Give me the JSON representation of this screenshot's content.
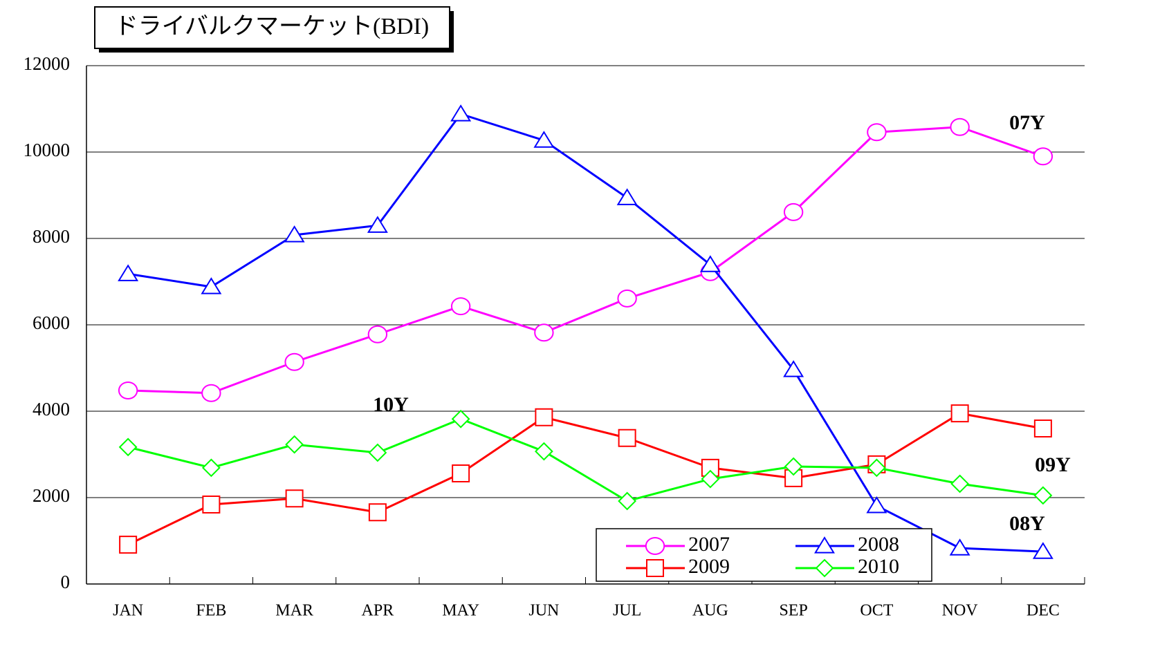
{
  "chart_data": {
    "type": "line",
    "title": "ドライバルクマーケット(BDI)",
    "categories": [
      "JAN",
      "FEB",
      "MAR",
      "APR",
      "MAY",
      "JUN",
      "JUL",
      "AUG",
      "SEP",
      "OCT",
      "NOV",
      "DEC"
    ],
    "series": [
      {
        "name": "2007",
        "color": "#ff00ff",
        "marker": "circle",
        "values": [
          4480,
          4420,
          5140,
          5780,
          6430,
          5820,
          6610,
          7220,
          8610,
          10460,
          10580,
          9900
        ]
      },
      {
        "name": "2008",
        "color": "#0000ff",
        "marker": "triangle",
        "values": [
          7180,
          6880,
          8080,
          8300,
          10880,
          10270,
          8940,
          7390,
          4960,
          1810,
          830,
          750
        ]
      },
      {
        "name": "2009",
        "color": "#ff0000",
        "marker": "square",
        "values": [
          910,
          1840,
          1980,
          1660,
          2560,
          3860,
          3380,
          2690,
          2450,
          2770,
          3950,
          3600
        ]
      },
      {
        "name": "2010",
        "color": "#00ff00",
        "marker": "diamond",
        "values": [
          3170,
          2690,
          3230,
          3040,
          3820,
          3070,
          1920,
          2430,
          2720,
          2690,
          2320,
          2050
        ]
      }
    ],
    "annotations": [
      "07Y",
      "08Y",
      "09Y",
      "10Y"
    ],
    "ylim": [
      0,
      12000
    ],
    "yticks": [
      0,
      2000,
      4000,
      6000,
      8000,
      10000,
      12000
    ],
    "grid": true
  }
}
